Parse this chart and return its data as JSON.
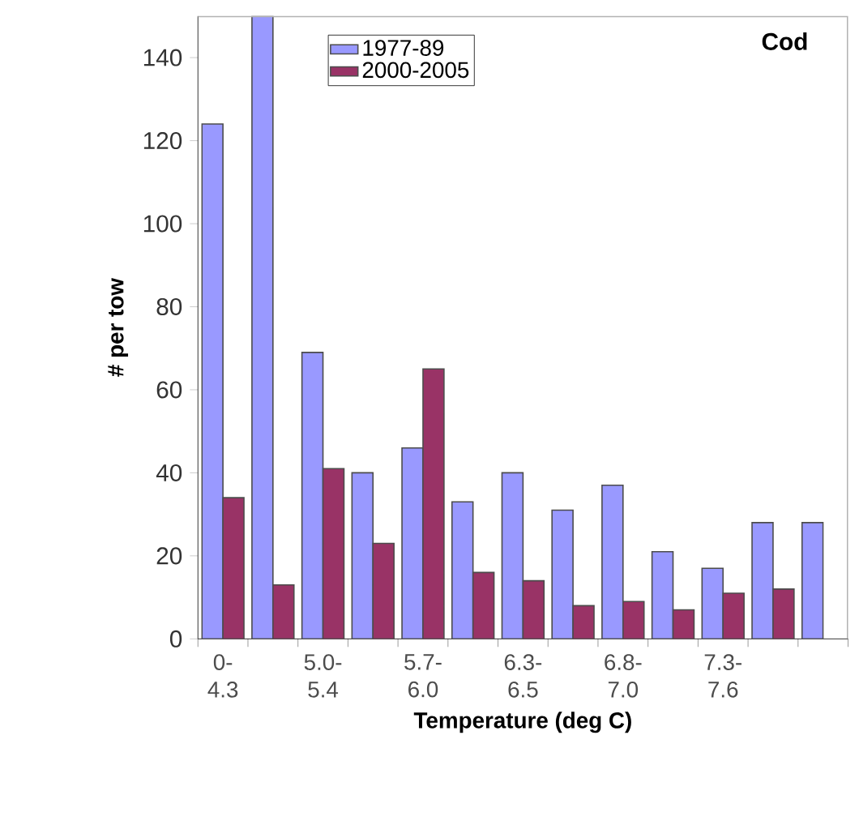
{
  "chart_data": {
    "type": "bar",
    "title": "Cod",
    "xlabel": "Temperature (deg C)",
    "ylabel": "# per tow",
    "categories": [
      "0- 4.3",
      null,
      "5.0- 5.4",
      null,
      "5.7- 6.0",
      null,
      "6.3- 6.5",
      null,
      "6.8- 7.0",
      null,
      "7.3- 7.6",
      null,
      null
    ],
    "series": [
      {
        "name": "1977-89",
        "color": "#9999ff",
        "values": [
          124,
          150,
          69,
          40,
          46,
          33,
          40,
          31,
          37,
          21,
          17,
          28,
          28
        ]
      },
      {
        "name": "2000-2005",
        "color": "#993366",
        "values": [
          34,
          13,
          41,
          23,
          65,
          16,
          14,
          8,
          9,
          7,
          11,
          12,
          null
        ]
      }
    ],
    "ylim": [
      0,
      150
    ],
    "yticks": [
      0,
      20,
      40,
      60,
      80,
      100,
      120,
      140
    ],
    "legend": "top left"
  }
}
